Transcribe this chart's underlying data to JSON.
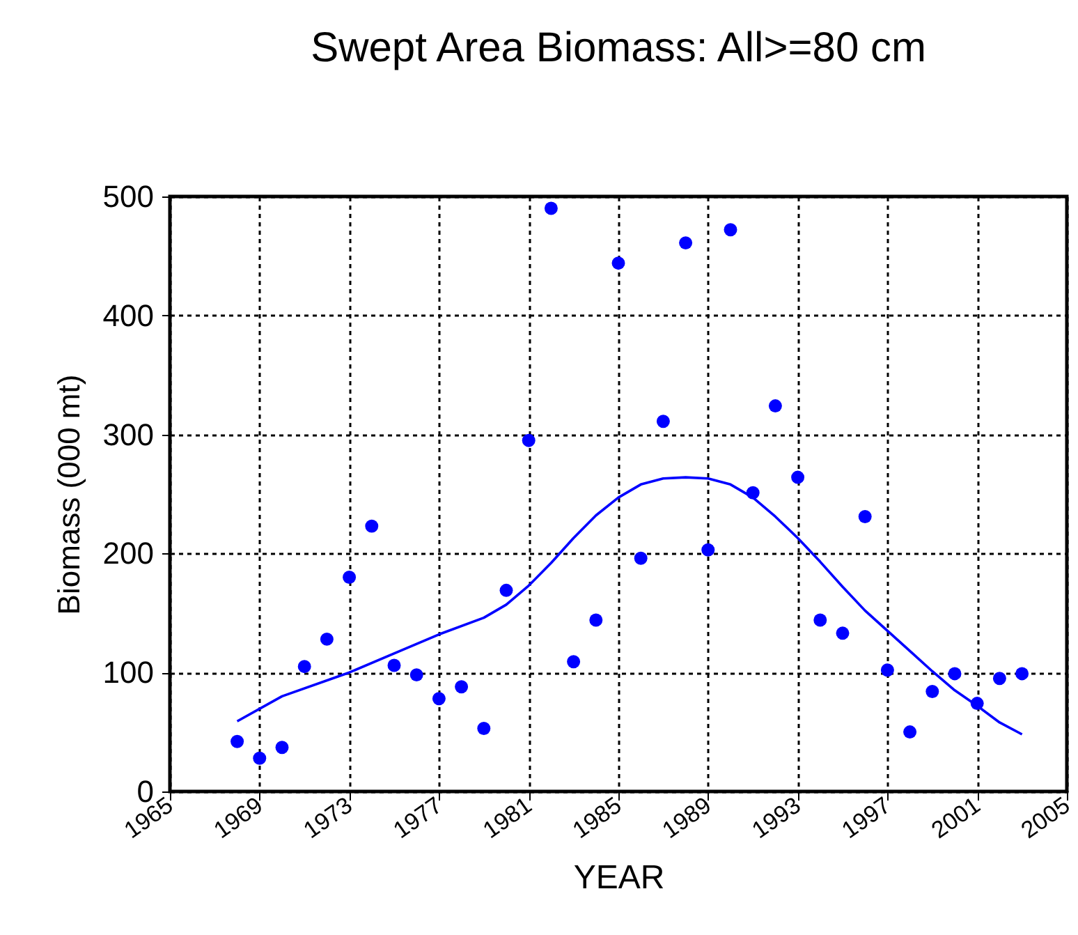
{
  "chart_data": {
    "type": "scatter",
    "title": "Swept Area Biomass: All>=80 cm",
    "xlabel": "YEAR",
    "ylabel": "Biomass (000 mt)",
    "xlim": [
      1965,
      2005
    ],
    "xticks": [
      1965,
      1969,
      1973,
      1977,
      1981,
      1985,
      1989,
      1993,
      1997,
      2001,
      2005
    ],
    "ylim": [
      0,
      500
    ],
    "yticks": [
      0,
      100,
      200,
      300,
      400,
      500
    ],
    "grid": true,
    "series": [
      {
        "marker": "circle",
        "color": "#0000ff",
        "x": [
          1968,
          1969,
          1970,
          1971,
          1972,
          1973,
          1974,
          1975,
          1976,
          1977,
          1978,
          1979,
          1980,
          1981,
          1982,
          1983,
          1984,
          1985,
          1986,
          1987,
          1988,
          1989,
          1990,
          1991,
          1992,
          1993,
          1994,
          1995,
          1996,
          1997,
          1998,
          1999,
          2000,
          2001,
          2002,
          2003
        ],
        "values": [
          42,
          28,
          37,
          105,
          128,
          180,
          223,
          106,
          98,
          78,
          88,
          53,
          169,
          295,
          490,
          109,
          144,
          444,
          196,
          311,
          461,
          203,
          472,
          251,
          324,
          264,
          144,
          133,
          231,
          102,
          50,
          84,
          99,
          74,
          95,
          99
        ]
      },
      {
        "type": "line",
        "color": "#0000ff",
        "x": [
          1968,
          1970,
          1973,
          1975,
          1977,
          1979,
          1980,
          1981,
          1982,
          1983,
          1984,
          1985,
          1986,
          1987,
          1988,
          1989,
          1990,
          1991,
          1992,
          1993,
          1994,
          1995,
          1996,
          1997,
          1998,
          1999,
          2000,
          2001,
          2002,
          2003
        ],
        "values": [
          59,
          80,
          100,
          116,
          132,
          146,
          157,
          173,
          192,
          213,
          232,
          247,
          258,
          263,
          264,
          263,
          258,
          247,
          231,
          213,
          193,
          172,
          152,
          135,
          118,
          101,
          85,
          72,
          58,
          48
        ]
      }
    ]
  }
}
